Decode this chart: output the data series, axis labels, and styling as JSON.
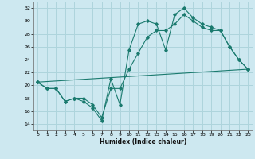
{
  "xlabel": "Humidex (Indice chaleur)",
  "ylabel": "",
  "bg_color": "#cde8f0",
  "grid_color": "#aed4dc",
  "line_color": "#1a7a6e",
  "xlim": [
    -0.5,
    23.5
  ],
  "ylim": [
    13,
    33
  ],
  "xticks": [
    0,
    1,
    2,
    3,
    4,
    5,
    6,
    7,
    8,
    9,
    10,
    11,
    12,
    13,
    14,
    15,
    16,
    17,
    18,
    19,
    20,
    21,
    22,
    23
  ],
  "yticks": [
    14,
    16,
    18,
    20,
    22,
    24,
    26,
    28,
    30,
    32
  ],
  "line1_x": [
    0,
    1,
    2,
    3,
    4,
    5,
    6,
    7,
    8,
    9,
    10,
    11,
    12,
    13,
    14,
    15,
    16,
    17,
    18,
    19,
    20,
    21,
    22,
    23
  ],
  "line1_y": [
    20.5,
    19.5,
    19.5,
    17.5,
    18.0,
    17.5,
    16.5,
    14.5,
    21.0,
    17.0,
    25.5,
    29.5,
    30.0,
    29.5,
    25.5,
    31.0,
    32.0,
    30.5,
    29.5,
    29.0,
    28.5,
    26.0,
    24.0,
    22.5
  ],
  "line2_x": [
    0,
    1,
    2,
    3,
    4,
    5,
    6,
    7,
    8,
    9,
    10,
    11,
    12,
    13,
    14,
    15,
    16,
    17,
    18,
    19,
    20,
    21,
    22,
    23
  ],
  "line2_y": [
    20.5,
    19.5,
    19.5,
    17.5,
    18.0,
    18.0,
    17.0,
    15.0,
    19.5,
    19.5,
    22.5,
    25.0,
    27.5,
    28.5,
    28.5,
    29.5,
    31.0,
    30.0,
    29.0,
    28.5,
    28.5,
    26.0,
    24.0,
    22.5
  ],
  "line3_x": [
    0,
    23
  ],
  "line3_y": [
    20.5,
    22.5
  ]
}
